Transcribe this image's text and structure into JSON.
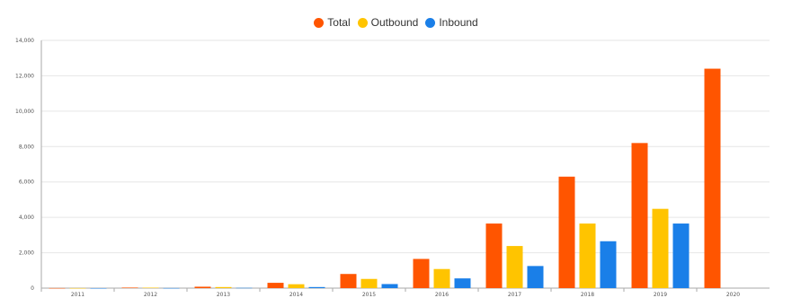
{
  "chart_data": {
    "type": "bar",
    "title": "",
    "xlabel": "",
    "ylabel": "",
    "ylim": [
      0,
      14000
    ],
    "yticks": [
      0,
      2000,
      4000,
      6000,
      8000,
      10000,
      12000,
      14000
    ],
    "ytick_labels": [
      "0",
      "2,000",
      "4,000",
      "6,000",
      "8,000",
      "10,000",
      "12,000",
      "14,000"
    ],
    "categories": [
      "2011",
      "2012",
      "2013",
      "2014",
      "2015",
      "2016",
      "2017",
      "2018",
      "2019",
      "2020"
    ],
    "grid": true,
    "legend_position": "top-center",
    "series": [
      {
        "name": "Total",
        "color": "#ff5500",
        "values": [
          5,
          30,
          80,
          300,
          800,
          1650,
          3650,
          6300,
          8200,
          12400
        ]
      },
      {
        "name": "Outbound",
        "color": "#ffc400",
        "values": [
          4,
          25,
          60,
          220,
          520,
          1080,
          2380,
          3650,
          4480,
          0
        ]
      },
      {
        "name": "Inbound",
        "color": "#1a7fe8",
        "values": [
          1,
          5,
          15,
          60,
          230,
          550,
          1250,
          2650,
          3650,
          0
        ]
      }
    ]
  }
}
